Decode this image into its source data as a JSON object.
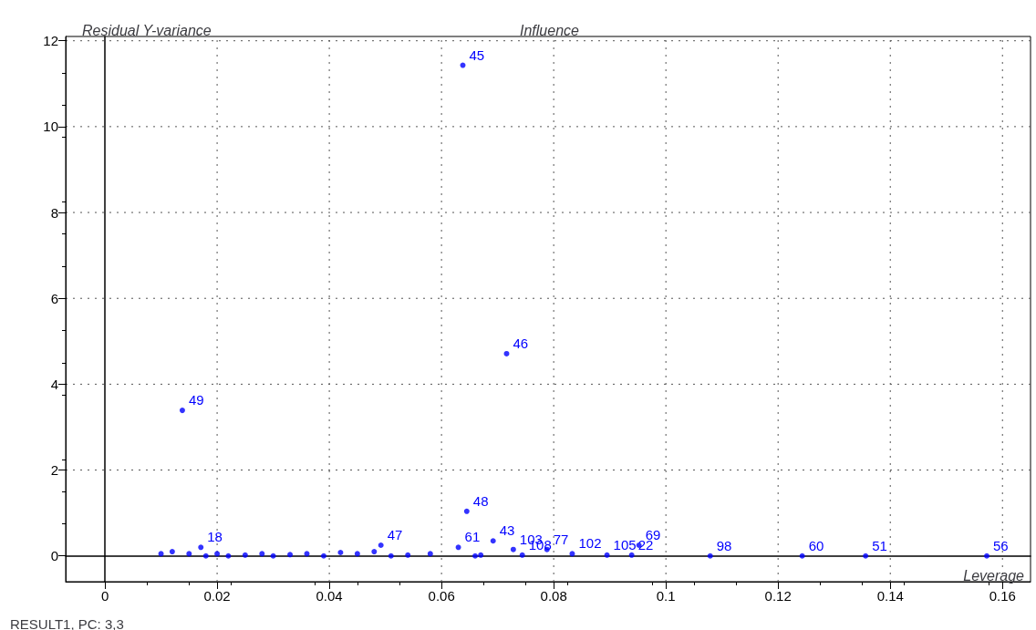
{
  "chart_data": {
    "type": "scatter",
    "title": "Influence",
    "xlabel": "Leverage",
    "ylabel": "Residual Y-variance",
    "annotations": [
      "RESULT1, PC: 3,3",
      {
        "text": "45",
        "x": 0.0638,
        "y": 11.43
      },
      {
        "text": "46",
        "x": 0.0716,
        "y": 4.71
      },
      {
        "text": "49",
        "x": 0.0138,
        "y": 3.39
      },
      {
        "text": "48",
        "x": 0.0645,
        "y": 1.04
      },
      {
        "text": "56",
        "x": 0.1572,
        "y": 0
      },
      {
        "text": "51",
        "x": 0.1356,
        "y": 0
      },
      {
        "text": "60",
        "x": 0.1243,
        "y": 0
      },
      {
        "text": "98",
        "x": 0.1079,
        "y": 0
      },
      {
        "text": "43",
        "x": 0.0692,
        "y": 0.35
      },
      {
        "text": "103",
        "x": 0.0728,
        "y": 0.15
      },
      {
        "text": "77",
        "x": 0.0788,
        "y": 0.15
      },
      {
        "text": "108",
        "x": 0.0744,
        "y": 0.02
      },
      {
        "text": "102",
        "x": 0.0833,
        "y": 0.05
      },
      {
        "text": "105",
        "x": 0.0895,
        "y": 0.02
      },
      {
        "text": "22",
        "x": 0.0939,
        "y": 0.02
      },
      {
        "text": "69",
        "x": 0.0952,
        "y": 0.25
      },
      {
        "text": "61",
        "x": 0.063,
        "y": 0.2
      },
      {
        "text": "47",
        "x": 0.0492,
        "y": 0.25
      },
      {
        "text": "18",
        "x": 0.0171,
        "y": 0.2
      }
    ],
    "x": [
      0.0638,
      0.0716,
      0.0138,
      0.0645,
      0.1572,
      0.1356,
      0.1243,
      0.1079,
      0.0692,
      0.0728,
      0.0788,
      0.0744,
      0.0833,
      0.0895,
      0.0939,
      0.0952,
      0.063,
      0.0492,
      0.0171,
      0.01,
      0.012,
      0.015,
      0.018,
      0.02,
      0.022,
      0.025,
      0.028,
      0.03,
      0.033,
      0.036,
      0.039,
      0.042,
      0.045,
      0.048,
      0.051,
      0.054,
      0.058,
      0.066,
      0.067
    ],
    "values": [
      11.43,
      4.71,
      3.39,
      1.04,
      0,
      0,
      0,
      0,
      0.35,
      0.15,
      0.15,
      0.02,
      0.05,
      0.02,
      0.02,
      0.25,
      0.2,
      0.25,
      0.2,
      0.05,
      0.1,
      0.05,
      0,
      0.05,
      0,
      0.02,
      0.05,
      0,
      0.03,
      0.05,
      0,
      0.08,
      0.05,
      0.1,
      0,
      0.02,
      0.05,
      0,
      0.02
    ],
    "color": "#0000ff",
    "marker": "circle",
    "xlim": [
      -0.007,
      0.165
    ],
    "ylim": [
      -0.6,
      12.1
    ],
    "xticks": [
      0,
      0.02,
      0.04,
      0.06,
      0.08,
      0.1,
      0.12,
      0.14,
      0.16
    ],
    "yticks": [
      0,
      2,
      4,
      6,
      8,
      10,
      12
    ],
    "grid": true
  }
}
